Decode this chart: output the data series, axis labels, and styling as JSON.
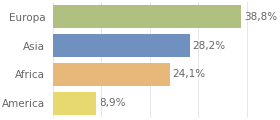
{
  "categories": [
    "Europa",
    "Asia",
    "Africa",
    "America"
  ],
  "values": [
    38.8,
    28.2,
    24.1,
    8.9
  ],
  "labels": [
    "38,8%",
    "28,2%",
    "24,1%",
    "8,9%"
  ],
  "colors": [
    "#b0c080",
    "#7090c0",
    "#e8b87a",
    "#e8d870"
  ],
  "xlim": [
    0,
    46
  ],
  "background_color": "#ffffff",
  "bar_height": 0.82,
  "label_fontsize": 7.5,
  "category_fontsize": 7.5,
  "text_color": "#666666"
}
